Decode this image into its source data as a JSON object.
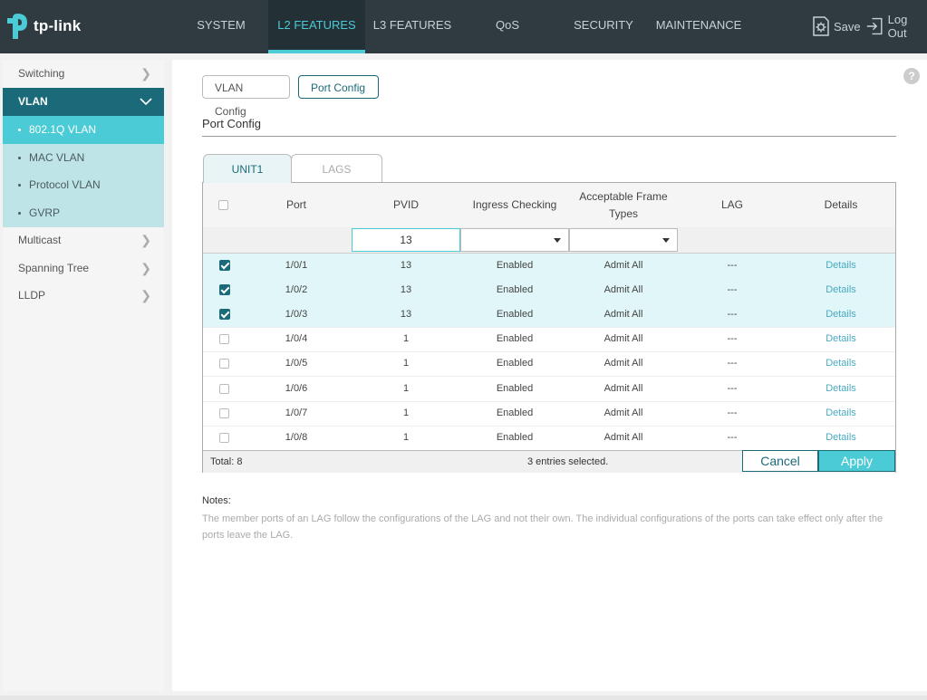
{
  "brand": {
    "logo_text": "tp-link",
    "accent": "#4acbd6",
    "dark": "#2f3b40",
    "teal": "#1b6a79"
  },
  "nav": {
    "items": [
      {
        "label": "SYSTEM"
      },
      {
        "label": "L2 FEATURES"
      },
      {
        "label": "L3 FEATURES"
      },
      {
        "label": "QoS"
      },
      {
        "label": "SECURITY"
      },
      {
        "label": "MAINTENANCE"
      }
    ],
    "active": "L2 FEATURES",
    "save_label": "Save",
    "logout_label": "Log Out"
  },
  "sidebar": {
    "items": [
      {
        "label": "Switching"
      },
      {
        "label": "VLAN"
      },
      {
        "label": "802.1Q VLAN"
      },
      {
        "label": "MAC VLAN"
      },
      {
        "label": "Protocol VLAN"
      },
      {
        "label": "GVRP"
      },
      {
        "label": "Multicast"
      },
      {
        "label": "Spanning Tree"
      },
      {
        "label": "LLDP"
      }
    ],
    "active": "802.1Q VLAN"
  },
  "tabs": {
    "vlan_config": "VLAN Config",
    "port_config": "Port Config",
    "active": "Port Config"
  },
  "section_title": "Port Config",
  "unit_tabs": {
    "unit1": "UNIT1",
    "lags": "LAGS",
    "active": "UNIT1"
  },
  "table": {
    "headers": {
      "port": "Port",
      "pvid": "PVID",
      "ingress": "Ingress Checking",
      "frame_line1": "Acceptable Frame",
      "frame_line2": "Types",
      "lag": "LAG",
      "details": "Details"
    },
    "filter": {
      "pvid_value": "13",
      "ingress_value": "",
      "frame_value": ""
    },
    "rows": [
      {
        "selected": true,
        "port": "1/0/1",
        "pvid": "13",
        "ingress": "Enabled",
        "frame": "Admit All",
        "lag": "---",
        "details": "Details"
      },
      {
        "selected": true,
        "port": "1/0/2",
        "pvid": "13",
        "ingress": "Enabled",
        "frame": "Admit All",
        "lag": "---",
        "details": "Details"
      },
      {
        "selected": true,
        "port": "1/0/3",
        "pvid": "13",
        "ingress": "Enabled",
        "frame": "Admit All",
        "lag": "---",
        "details": "Details"
      },
      {
        "selected": false,
        "port": "1/0/4",
        "pvid": "1",
        "ingress": "Enabled",
        "frame": "Admit All",
        "lag": "---",
        "details": "Details"
      },
      {
        "selected": false,
        "port": "1/0/5",
        "pvid": "1",
        "ingress": "Enabled",
        "frame": "Admit All",
        "lag": "---",
        "details": "Details"
      },
      {
        "selected": false,
        "port": "1/0/6",
        "pvid": "1",
        "ingress": "Enabled",
        "frame": "Admit All",
        "lag": "---",
        "details": "Details"
      },
      {
        "selected": false,
        "port": "1/0/7",
        "pvid": "1",
        "ingress": "Enabled",
        "frame": "Admit All",
        "lag": "---",
        "details": "Details"
      },
      {
        "selected": false,
        "port": "1/0/8",
        "pvid": "1",
        "ingress": "Enabled",
        "frame": "Admit All",
        "lag": "---",
        "details": "Details"
      }
    ],
    "footer": {
      "total": "Total: 8",
      "selected": "3 entries selected."
    },
    "cancel_label": "Cancel",
    "apply_label": "Apply"
  },
  "notes": {
    "title": "Notes:",
    "text": "The member ports of an LAG follow the configurations of the LAG and not their own. The individual configurations of the ports can take effect only after the ports leave the LAG."
  },
  "help_icon": "?"
}
